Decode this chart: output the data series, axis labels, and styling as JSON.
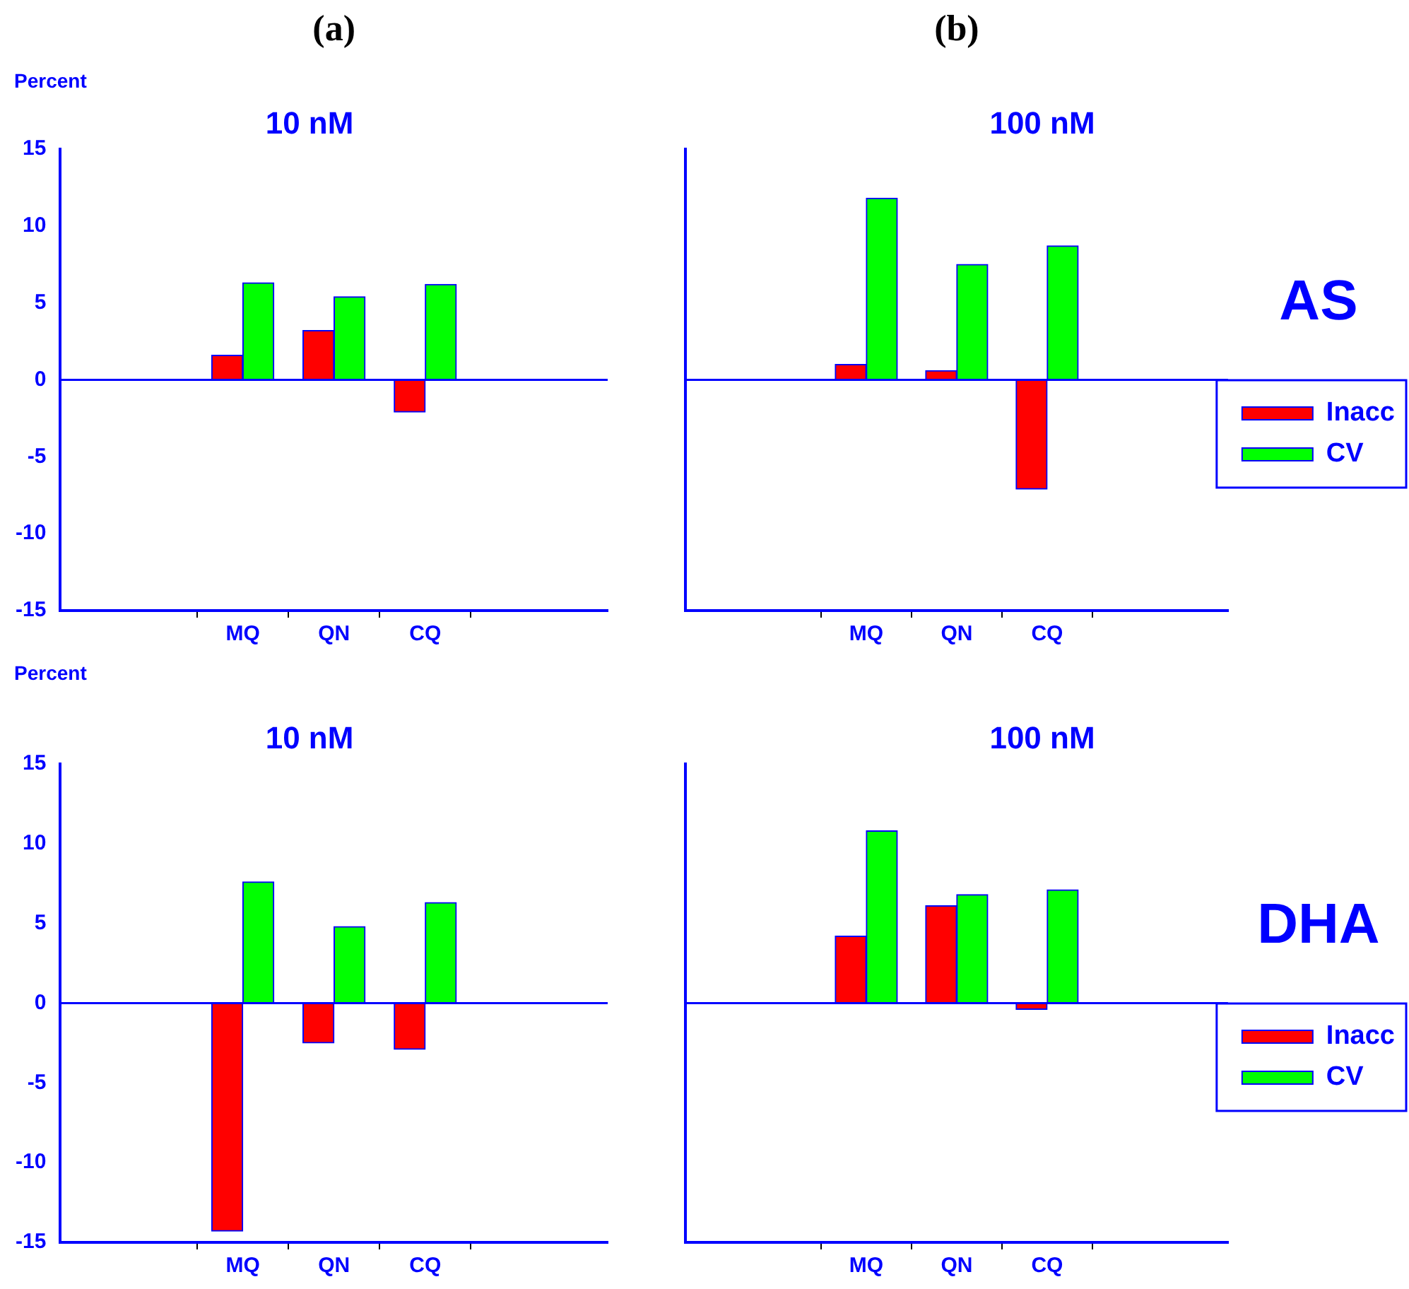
{
  "chart_data": [
    {
      "type": "bar",
      "title": "10 nM",
      "annotations": [
        "(a)"
      ],
      "ylabel": "Percent",
      "categories": [
        "MQ",
        "QN",
        "CQ"
      ],
      "series": [
        {
          "color": "#ff0000",
          "values": [
            1.6,
            3.2,
            -2.1
          ]
        },
        {
          "color": "#00ff00",
          "values": [
            6.3,
            5.4,
            6.2
          ]
        }
      ],
      "ylim": [
        -15,
        15
      ],
      "yticks": [
        -15,
        -10,
        -5,
        0,
        5,
        10,
        15
      ],
      "ref_lines": [
        {
          "axis": "y",
          "value": 0,
          "color": "#0000ff"
        }
      ]
    },
    {
      "type": "bar",
      "title": "100 nM",
      "annotations": [
        "(b)"
      ],
      "categories": [
        "MQ",
        "QN",
        "CQ"
      ],
      "series": [
        {
          "name": "Inacc",
          "color": "#ff0000",
          "values": [
            1.0,
            0.6,
            -7.1
          ]
        },
        {
          "name": "CV",
          "color": "#00ff00",
          "values": [
            11.8,
            7.5,
            8.7
          ]
        }
      ],
      "ylim": [
        -15,
        15
      ],
      "yticks": [
        -15,
        -10,
        -5,
        0,
        5,
        10,
        15
      ],
      "tick_labels": "x",
      "legend": "right",
      "legend_title": "AS",
      "ref_lines": [
        {
          "axis": "y",
          "value": 0,
          "color": "#0000ff"
        }
      ]
    },
    {
      "type": "bar",
      "title": "10 nM",
      "ylabel": "Percent",
      "categories": [
        "MQ",
        "QN",
        "CQ"
      ],
      "series": [
        {
          "color": "#ff0000",
          "values": [
            -14.3,
            -2.5,
            -2.9
          ]
        },
        {
          "color": "#00ff00",
          "values": [
            7.6,
            4.8,
            6.3
          ]
        }
      ],
      "ylim": [
        -15,
        15
      ],
      "yticks": [
        -15,
        -10,
        -5,
        0,
        5,
        10,
        15
      ],
      "ref_lines": [
        {
          "axis": "y",
          "value": 0,
          "color": "#0000ff"
        }
      ]
    },
    {
      "type": "bar",
      "title": "100 nM",
      "categories": [
        "MQ",
        "QN",
        "CQ"
      ],
      "series": [
        {
          "name": "Inacc",
          "color": "#ff0000",
          "values": [
            4.2,
            6.1,
            -0.4
          ]
        },
        {
          "name": "CV",
          "color": "#00ff00",
          "values": [
            10.8,
            6.8,
            7.1
          ]
        }
      ],
      "ylim": [
        -15,
        15
      ],
      "yticks": [
        -15,
        -10,
        -5,
        0,
        5,
        10,
        15
      ],
      "tick_labels": "x",
      "legend": "right",
      "legend_title": "DHA",
      "ref_lines": [
        {
          "axis": "y",
          "value": 0,
          "color": "#0000ff"
        }
      ]
    }
  ]
}
